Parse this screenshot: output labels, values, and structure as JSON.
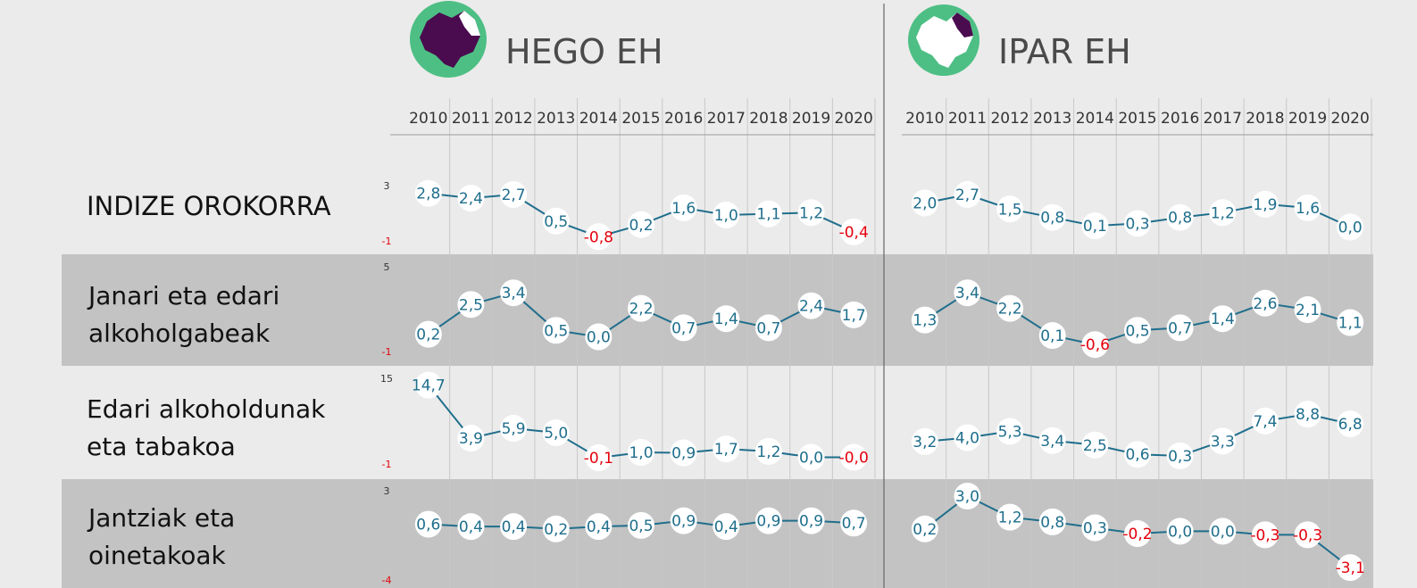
{
  "panels": [
    {
      "title": "HEGO EH",
      "map_highlight": "Hego Euskal Herria"
    },
    {
      "title": "IPAR EH",
      "map_highlight": "Ipar Euskal Herria"
    }
  ],
  "colors": {
    "background": "#ebebeb",
    "band": "#c3c3c3",
    "line": "#1f6e8c",
    "positive_label": "#1f6e8c",
    "negative_label": "#e3000b",
    "map_circle": "#4dbf84",
    "map_highlight": "#4a0b4f",
    "map_base": "#ffffff"
  },
  "chart_data": {
    "type": "line",
    "years": [
      "2010",
      "2011",
      "2012",
      "2013",
      "2014",
      "2015",
      "2016",
      "2017",
      "2018",
      "2019",
      "2020"
    ],
    "rows": [
      {
        "label_lines": [
          "INDIZE OROKORRA"
        ],
        "axis_max": "3",
        "axis_min": "-1",
        "ylim": [
          -1,
          3
        ],
        "hego": [
          2.8,
          2.4,
          2.7,
          0.5,
          -0.8,
          0.2,
          1.6,
          1.0,
          1.1,
          1.2,
          -0.4
        ],
        "hego_labels": [
          "2,8",
          "2,4",
          "2,7",
          "0,5",
          "-0,8",
          "0,2",
          "1,6",
          "1,0",
          "1,1",
          "1,2",
          "-0,4"
        ],
        "ipar": [
          2.0,
          2.7,
          1.5,
          0.8,
          0.1,
          0.3,
          0.8,
          1.2,
          1.9,
          1.6,
          0.0
        ],
        "ipar_labels": [
          "2,0",
          "2,7",
          "1,5",
          "0,8",
          "0,1",
          "0,3",
          "0,8",
          "1,2",
          "1,9",
          "1,6",
          "0,0"
        ]
      },
      {
        "label_lines": [
          "Janari eta edari",
          "alkoholgabeak"
        ],
        "axis_max": "5",
        "axis_min": "-1",
        "ylim": [
          -1,
          5
        ],
        "hego": [
          0.2,
          2.5,
          3.4,
          0.5,
          0.0,
          2.2,
          0.7,
          1.4,
          0.7,
          2.4,
          1.7
        ],
        "hego_labels": [
          "0,2",
          "2,5",
          "3,4",
          "0,5",
          "0,0",
          "2,2",
          "0,7",
          "1,4",
          "0,7",
          "2,4",
          "1,7"
        ],
        "ipar": [
          1.3,
          3.4,
          2.2,
          0.1,
          -0.6,
          0.5,
          0.7,
          1.4,
          2.6,
          2.1,
          1.1
        ],
        "ipar_labels": [
          "1,3",
          "3,4",
          "2,2",
          "0,1",
          "-0,6",
          "0,5",
          "0,7",
          "1,4",
          "2,6",
          "2,1",
          "1,1"
        ]
      },
      {
        "label_lines": [
          "Edari alkoholdunak",
          "eta tabakoa"
        ],
        "axis_max": "15",
        "axis_min": "-1",
        "ylim": [
          -1,
          15
        ],
        "hego": [
          14.7,
          3.9,
          5.9,
          5.0,
          -0.1,
          1.0,
          0.9,
          1.7,
          1.2,
          0.0,
          -0.0
        ],
        "hego_labels": [
          "14,7",
          "3,9",
          "5,9",
          "5,0",
          "-0,1",
          "1,0",
          "0,9",
          "1,7",
          "1,2",
          "0,0",
          "-0,0"
        ],
        "ipar": [
          3.2,
          4.0,
          5.3,
          3.4,
          2.5,
          0.6,
          0.3,
          3.3,
          7.4,
          8.8,
          6.8
        ],
        "ipar_labels": [
          "3,2",
          "4,0",
          "5,3",
          "3,4",
          "2,5",
          "0,6",
          "0,3",
          "3,3",
          "7,4",
          "8,8",
          "6,8"
        ]
      },
      {
        "label_lines": [
          "Jantziak eta",
          "oinetakoak"
        ],
        "axis_max": "3",
        "axis_min": "-4",
        "ylim": [
          -4,
          3
        ],
        "hego": [
          0.6,
          0.4,
          0.4,
          0.2,
          0.4,
          0.5,
          0.9,
          0.4,
          0.9,
          0.9,
          0.7
        ],
        "hego_labels": [
          "0,6",
          "0,4",
          "0,4",
          "0,2",
          "0,4",
          "0,5",
          "0,9",
          "0,4",
          "0,9",
          "0,9",
          "0,7"
        ],
        "ipar": [
          0.2,
          3.0,
          1.2,
          0.8,
          0.3,
          -0.2,
          0.0,
          0.0,
          -0.3,
          -0.3,
          -3.1
        ],
        "ipar_labels": [
          "0,2",
          "3,0",
          "1,2",
          "0,8",
          "0,3",
          "-0,2",
          "0,0",
          "0,0",
          "-0,3",
          "-0,3",
          "-3,1"
        ]
      }
    ]
  }
}
